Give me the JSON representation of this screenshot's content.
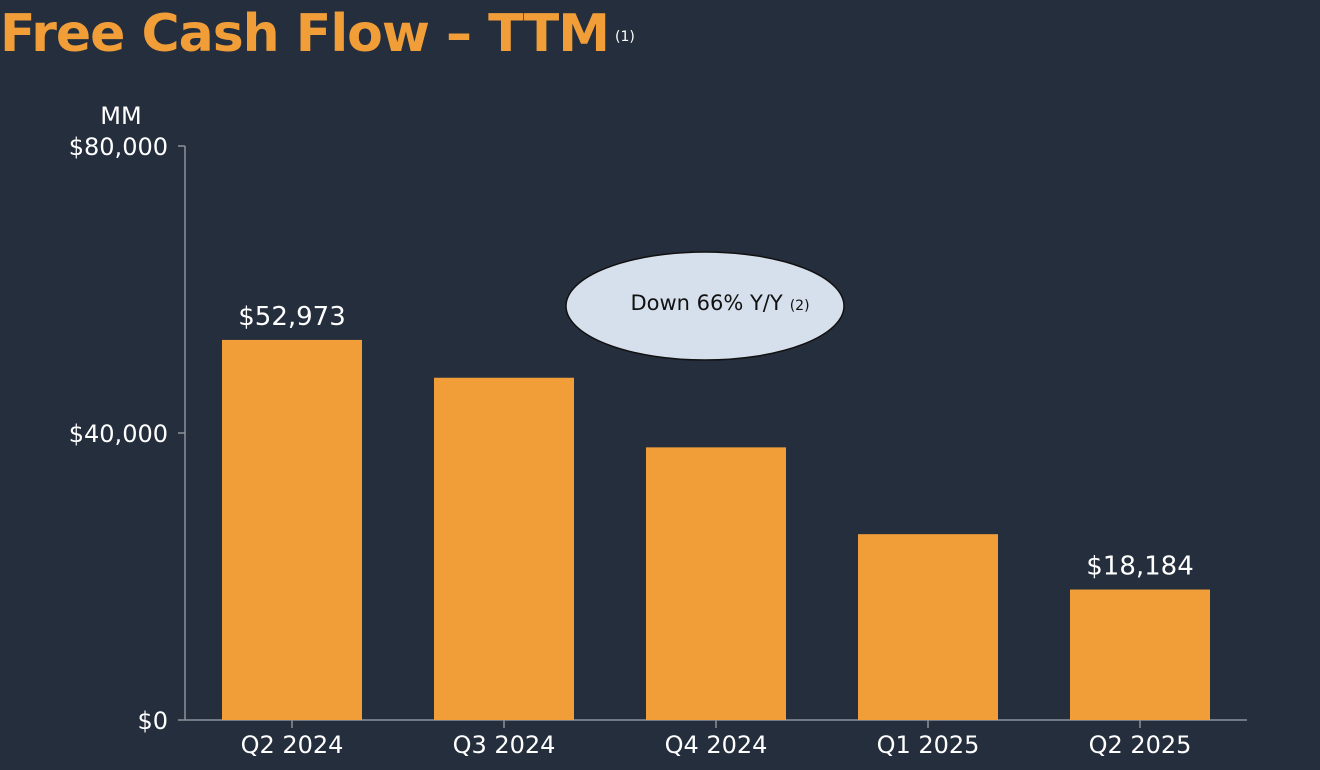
{
  "colors": {
    "background": "#252e3d",
    "bar": "#f19e38",
    "title": "#f19e38",
    "axis": "#8c929b",
    "callout_fill": "#d6dfec",
    "callout_stroke": "#111111"
  },
  "chart_data": {
    "type": "bar",
    "title": "Free Cash Flow – TTM",
    "title_note": "(1)",
    "ylabel": "MM",
    "ylim": [
      0,
      80000
    ],
    "yticks": [
      0,
      40000,
      80000
    ],
    "ytick_labels": [
      "$0",
      "$40,000",
      "$80,000"
    ],
    "grid": false,
    "categories": [
      "Q2 2024",
      "Q3 2024",
      "Q4 2024",
      "Q1 2025",
      "Q2 2025"
    ],
    "values": [
      52973,
      47700,
      38000,
      25900,
      18184
    ],
    "data_labels": [
      "$52,973",
      "",
      "",
      "",
      "$18,184"
    ],
    "annotation": {
      "text": "Down 66% Y/Y",
      "note": "(2)"
    }
  }
}
